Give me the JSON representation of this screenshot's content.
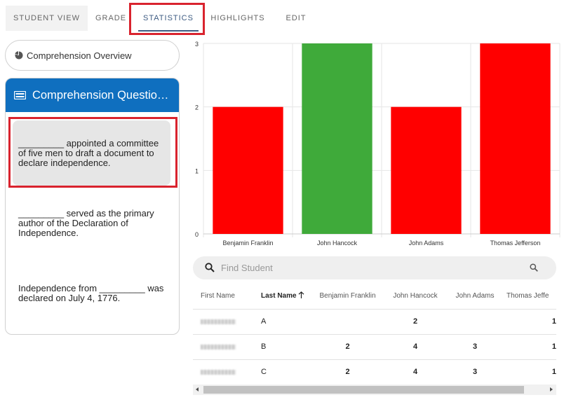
{
  "tabs": [
    {
      "label": "STUDENT VIEW"
    },
    {
      "label": "GRADE"
    },
    {
      "label": "STATISTICS"
    },
    {
      "label": "HIGHLIGHTS"
    },
    {
      "label": "EDIT"
    }
  ],
  "active_tab": "STATISTICS",
  "sidebar": {
    "overview_label": "Comprehension Overview",
    "questions_header": "Comprehension Questio…",
    "questions": [
      {
        "text": "_________ appointed a committee of five men to draft a document to declare independence."
      },
      {
        "text": "_________ served as the primary author of the Declaration of Independence."
      },
      {
        "text": "Independence from _________ was declared on July 4, 1776."
      }
    ]
  },
  "chart_data": {
    "type": "bar",
    "categories": [
      "Benjamin Franklin",
      "John Hancock",
      "John Adams",
      "Thomas Jefferson"
    ],
    "values": [
      2,
      3,
      2,
      3
    ],
    "colors": [
      "#ff0000",
      "#3faa3a",
      "#ff0000",
      "#ff0000"
    ],
    "ylim": [
      0,
      3
    ],
    "yticks": [
      "0",
      "1",
      "2",
      "3"
    ],
    "grid": true
  },
  "search": {
    "placeholder": "Find Student"
  },
  "table": {
    "headers": [
      "First Name",
      "Last Name",
      "Benjamin Franklin",
      "John Hancock",
      "John Adams",
      "Thomas Jeffe"
    ],
    "sorted_column": "Last Name",
    "rows": [
      {
        "last": "A",
        "bf": "",
        "jh": "2",
        "ja": "",
        "tj": "1"
      },
      {
        "last": "B",
        "bf": "2",
        "jh": "4",
        "ja": "3",
        "tj": "1"
      },
      {
        "last": "C",
        "bf": "2",
        "jh": "4",
        "ja": "3",
        "tj": "1"
      }
    ]
  },
  "colors": {
    "accent": "#0f6fbf",
    "tab_active": "#3d5b82",
    "highlight": "#d9232e",
    "correct": "#3faa3a",
    "incorrect": "#ff0000"
  }
}
